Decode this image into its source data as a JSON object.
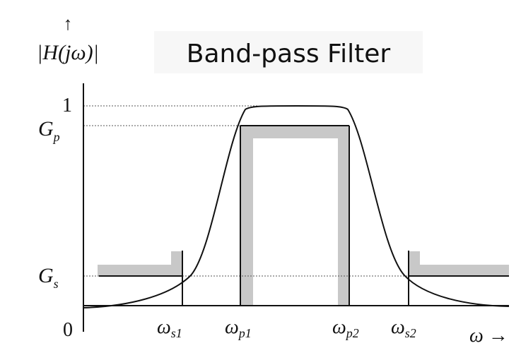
{
  "title": "Band-pass Filter",
  "y_axis": {
    "arrow": "↑",
    "label_main": "|H(jω)|"
  },
  "x_axis": {
    "label": "ω →"
  },
  "origin_label": "0",
  "y_ticks": {
    "one": "1",
    "gp": {
      "base": "G",
      "sub": "p"
    },
    "gs": {
      "base": "G",
      "sub": "s"
    }
  },
  "x_ticks": [
    {
      "base": "ω",
      "sub": "s1"
    },
    {
      "base": "ω",
      "sub": "p1"
    },
    {
      "base": "ω",
      "sub": "p2"
    },
    {
      "base": "ω",
      "sub": "s2"
    }
  ],
  "colors": {
    "curve": "#111111",
    "guide": "#555555",
    "shaded_band": "#c8c8c8"
  }
}
